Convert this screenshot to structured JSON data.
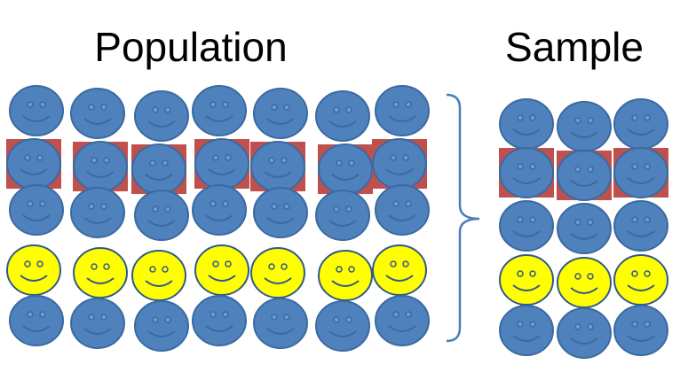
{
  "population": {
    "title": "Population"
  },
  "sample": {
    "title": "Sample"
  }
}
